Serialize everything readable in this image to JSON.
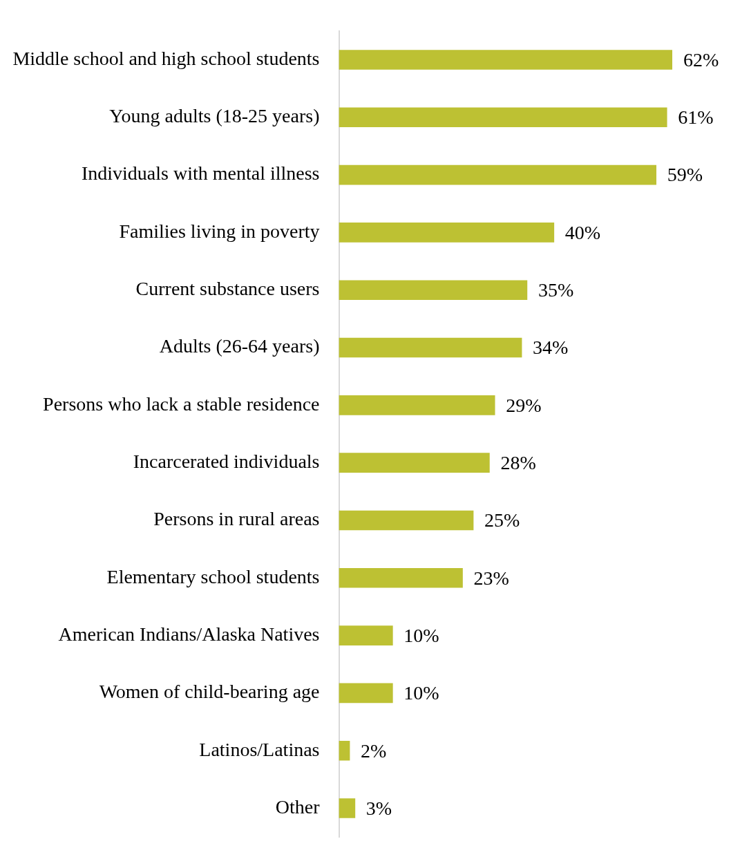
{
  "chart_data": {
    "type": "bar",
    "orientation": "horizontal",
    "categories": [
      "Middle school and high school students",
      "Young adults (18-25 years)",
      "Individuals with mental illness",
      "Families living in poverty",
      "Current substance users",
      "Adults (26-64 years)",
      "Persons who lack a stable residence",
      "Incarcerated individuals",
      "Persons in rural areas",
      "Elementary school students",
      "American Indians/Alaska Natives",
      "Women of child-bearing age",
      "Latinos/Latinas",
      "Other"
    ],
    "values": [
      62,
      61,
      59,
      40,
      35,
      34,
      29,
      28,
      25,
      23,
      10,
      10,
      2,
      3
    ],
    "value_labels": [
      "62%",
      "61%",
      "59%",
      "40%",
      "35%",
      "34%",
      "29%",
      "28%",
      "25%",
      "23%",
      "10%",
      "10%",
      "2%",
      "3%"
    ],
    "color": "#bdc133"
  }
}
